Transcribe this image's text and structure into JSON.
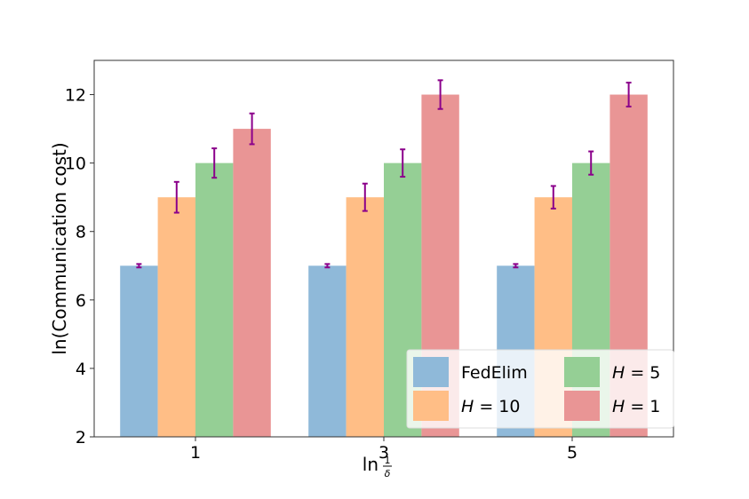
{
  "chart_data": {
    "type": "bar",
    "title": "",
    "xlabel": "ln",
    "xlabel_fraction": {
      "numerator": "1",
      "denominator": "δ"
    },
    "ylabel": "ln(Communication cost)",
    "categories": [
      "1",
      "3",
      "5"
    ],
    "ylim": [
      2,
      13
    ],
    "yticks": [
      "2",
      "4",
      "6",
      "8",
      "10",
      "12"
    ],
    "series": [
      {
        "name": "FedElim",
        "color": "#8fb9d9",
        "values": [
          7,
          7,
          7
        ],
        "errors": [
          0.05,
          0.05,
          0.05
        ]
      },
      {
        "name": "H = 10",
        "name_var": "H",
        "name_val": "10",
        "color": "#ffbe86",
        "values": [
          9,
          9,
          9
        ],
        "errors": [
          0.45,
          0.4,
          0.33
        ]
      },
      {
        "name": "H = 5",
        "name_var": "H",
        "name_val": "5",
        "color": "#95cf95",
        "values": [
          10,
          10,
          10
        ],
        "errors": [
          0.43,
          0.4,
          0.34
        ]
      },
      {
        "name": "H = 1",
        "name_var": "H",
        "name_val": "1",
        "color": "#e99595",
        "values": [
          11,
          12,
          12
        ],
        "errors": [
          0.45,
          0.42,
          0.35
        ]
      }
    ],
    "error_bar_color": "#8b008b",
    "grid": false,
    "legend_position": "lower-right",
    "legend_columns": 2
  }
}
